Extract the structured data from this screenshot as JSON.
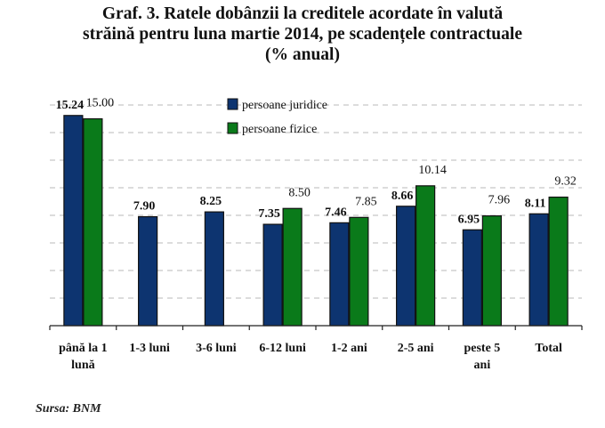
{
  "chart_data": {
    "type": "bar",
    "title_lines": [
      "Graf. 3. Ratele dobânzii la creditele acordate în valută",
      "străină pentru luna martie 2014, pe scadențele contractuale",
      "(% anual)"
    ],
    "categories": [
      [
        "până la 1",
        "lună"
      ],
      [
        "1-3 luni"
      ],
      [
        "3-6 luni"
      ],
      [
        "6-12 luni"
      ],
      [
        "1-2 ani"
      ],
      [
        "2-5 ani"
      ],
      [
        "peste 5",
        "ani"
      ],
      [
        "Total"
      ]
    ],
    "series": [
      {
        "name": "persoane juridice",
        "color": "#0d3470",
        "label_bold": true,
        "values": [
          15.24,
          7.9,
          8.25,
          7.35,
          7.46,
          8.66,
          6.95,
          8.11
        ],
        "labels": [
          "15.24",
          "7.90",
          "8.25",
          "7.35",
          "7.46",
          "8.66",
          "6.95",
          "8.11"
        ]
      },
      {
        "name": "persoane fizice",
        "color": "#0a7a1a",
        "label_bold": false,
        "values": [
          15.0,
          null,
          null,
          8.5,
          7.85,
          10.14,
          7.96,
          9.32
        ],
        "labels": [
          "15.00",
          null,
          null,
          "8.50",
          "7.85",
          "10.14",
          "7.96",
          "9.32"
        ]
      }
    ],
    "ylim": [
      0,
      16
    ],
    "grid_step": 2,
    "grid": true,
    "y_ticks_visible": false,
    "legend_position": "top-center",
    "xlabel": "",
    "ylabel": ""
  },
  "source": "Sursa: BNM"
}
